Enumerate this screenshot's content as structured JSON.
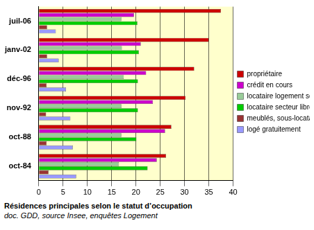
{
  "chart_data": {
    "type": "bar",
    "orientation": "horizontal",
    "title": "Résidences principales selon le statut d’occupation",
    "subtitle": "doc. GDD, source Insee, enquêtes Logement",
    "categories": [
      "juil-06",
      "janv-02",
      "déc-96",
      "nov-92",
      "oct-88",
      "oct-84"
    ],
    "series": [
      {
        "name": "propriétaire",
        "color": "#cc0000",
        "values": [
          37.5,
          35,
          32,
          30.2,
          27.3,
          26.2
        ]
      },
      {
        "name": "crédit en cours",
        "color": "#cc00cc",
        "values": [
          19.6,
          21,
          22.1,
          23.5,
          26,
          24.3
        ]
      },
      {
        "name": "locataire logement social",
        "color": "#99cc99",
        "values": [
          17,
          17.1,
          17.5,
          17,
          17,
          16.5
        ]
      },
      {
        "name": "locataire secteur libre",
        "color": "#00cc00",
        "values": [
          20.3,
          20.6,
          20.4,
          20.4,
          20.1,
          22.4
        ]
      },
      {
        "name": "meublés, sous-locataire",
        "color": "#993333",
        "values": [
          1.7,
          1.7,
          1.6,
          1.5,
          1.6,
          2
        ]
      },
      {
        "name": "logé gratuitement",
        "color": "#9999ff",
        "values": [
          3.5,
          4.1,
          5.6,
          6.5,
          7,
          7.7
        ]
      }
    ],
    "xlim": [
      0,
      40
    ],
    "xticks": [
      0,
      5,
      10,
      15,
      20,
      25,
      30,
      35,
      40
    ],
    "grid": true,
    "legend": "right"
  }
}
